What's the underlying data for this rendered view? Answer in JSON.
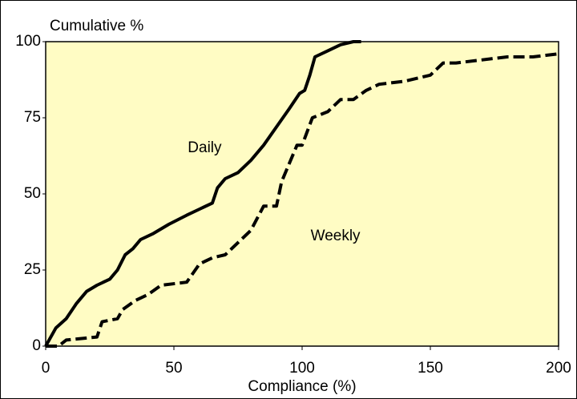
{
  "chart_data": {
    "type": "line",
    "x_label": "Compliance (%)",
    "y_label": "Cumulative %",
    "xlim": [
      0,
      200
    ],
    "xticks": [
      0,
      50,
      100,
      150,
      200
    ],
    "ylim": [
      0,
      100
    ],
    "yticks": [
      0,
      25,
      50,
      75,
      100
    ],
    "background": "#fffcc4",
    "grid": false,
    "series": [
      {
        "name": "Daily",
        "color": "#000000",
        "dashed": false,
        "x": [
          0,
          2,
          4,
          8,
          12,
          16,
          20,
          25,
          28,
          31,
          34,
          37,
          42,
          48,
          55,
          60,
          65,
          67,
          70,
          75,
          80,
          85,
          90,
          95,
          99,
          101,
          103,
          105,
          110,
          115,
          120,
          123
        ],
        "values": [
          0,
          3,
          6,
          9,
          14,
          18,
          20,
          22,
          25,
          30,
          32,
          35,
          37,
          40,
          43,
          45,
          47,
          52,
          55,
          57,
          61,
          66,
          72,
          78,
          83,
          84,
          89,
          95,
          97,
          99,
          100,
          100
        ]
      },
      {
        "name": "Weekly",
        "color": "#000000",
        "dashed": true,
        "x": [
          0,
          5,
          8,
          20,
          22,
          28,
          30,
          35,
          40,
          45,
          55,
          60,
          65,
          70,
          75,
          80,
          85,
          90,
          92,
          95,
          98,
          100,
          104,
          110,
          115,
          120,
          125,
          130,
          140,
          150,
          155,
          160,
          170,
          180,
          190,
          200
        ],
        "values": [
          0,
          0,
          2,
          3,
          8,
          9,
          12,
          15,
          17,
          20,
          21,
          27,
          29,
          30,
          34,
          38,
          46,
          46,
          54,
          60,
          66,
          66,
          75,
          77,
          81,
          81,
          84,
          86,
          87,
          89,
          93,
          93,
          94,
          95,
          95,
          96
        ]
      }
    ],
    "annotations": [
      {
        "text": "Daily",
        "x": 62,
        "y": 65
      },
      {
        "text": "Weekly",
        "x": 113,
        "y": 36
      }
    ]
  }
}
